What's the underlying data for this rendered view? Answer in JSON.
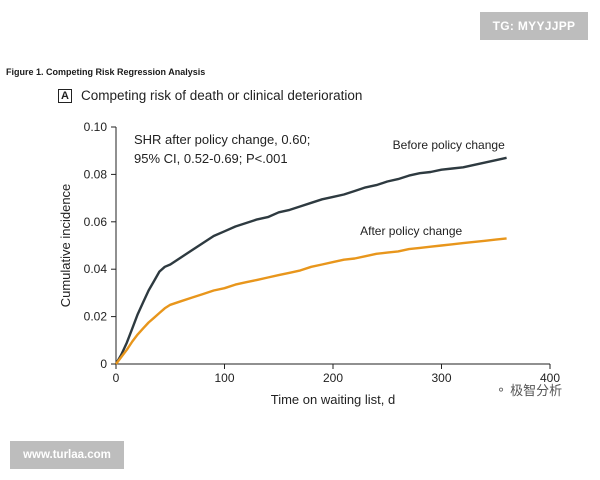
{
  "badges": {
    "top_right": "TG: MYYJJPP",
    "bottom_left": "www.turlaa.com",
    "watermark_text": "极智分析",
    "watermark_icon": "wechat-icon"
  },
  "figure": {
    "caption": "Figure 1.  Competing Risk Regression Analysis",
    "panel_letter": "A",
    "panel_title": "Competing risk of death or clinical deterioration"
  },
  "chart_data": {
    "type": "line",
    "title": "Competing risk of death or clinical deterioration",
    "xlabel": "Time on waiting list, d",
    "ylabel": "Cumulative incidence",
    "xlim": [
      0,
      400
    ],
    "ylim": [
      0,
      0.1
    ],
    "xticks": [
      0,
      100,
      200,
      300,
      400
    ],
    "yticks": [
      0,
      0.02,
      0.04,
      0.06,
      0.08,
      0.1
    ],
    "xtick_labels": [
      "0",
      "100",
      "200",
      "300",
      "400"
    ],
    "ytick_labels": [
      "0",
      "0.02",
      "0.04",
      "0.06",
      "0.08",
      "0.10"
    ],
    "grid": false,
    "annotation_lines": [
      "SHR after policy change, 0.60;",
      "95% CI, 0.52-0.69; P<.001"
    ],
    "series": [
      {
        "name": "Before policy change",
        "color": "#2e3a40",
        "x": [
          0,
          5,
          10,
          15,
          20,
          25,
          30,
          35,
          40,
          45,
          50,
          60,
          70,
          80,
          90,
          100,
          110,
          120,
          130,
          140,
          150,
          160,
          170,
          180,
          190,
          200,
          210,
          220,
          230,
          240,
          250,
          260,
          270,
          280,
          290,
          300,
          310,
          320,
          330,
          340,
          350,
          360
        ],
        "values": [
          0,
          0.004,
          0.009,
          0.015,
          0.021,
          0.026,
          0.031,
          0.035,
          0.039,
          0.041,
          0.042,
          0.045,
          0.048,
          0.051,
          0.054,
          0.056,
          0.058,
          0.0595,
          0.061,
          0.062,
          0.064,
          0.065,
          0.0665,
          0.068,
          0.0695,
          0.0705,
          0.0715,
          0.073,
          0.0745,
          0.0755,
          0.077,
          0.078,
          0.0795,
          0.0805,
          0.081,
          0.082,
          0.0825,
          0.083,
          0.084,
          0.085,
          0.086,
          0.087
        ]
      },
      {
        "name": "After policy change",
        "color": "#e8961c",
        "x": [
          0,
          5,
          10,
          15,
          20,
          25,
          30,
          35,
          40,
          45,
          50,
          60,
          70,
          80,
          90,
          100,
          110,
          120,
          130,
          140,
          150,
          160,
          170,
          180,
          190,
          200,
          210,
          220,
          230,
          240,
          250,
          260,
          270,
          280,
          290,
          300,
          310,
          320,
          330,
          340,
          350,
          360
        ],
        "values": [
          0,
          0.003,
          0.006,
          0.0095,
          0.0125,
          0.015,
          0.0175,
          0.0195,
          0.0215,
          0.0235,
          0.025,
          0.0265,
          0.028,
          0.0295,
          0.031,
          0.032,
          0.0335,
          0.0345,
          0.0355,
          0.0365,
          0.0375,
          0.0385,
          0.0395,
          0.041,
          0.042,
          0.043,
          0.044,
          0.0445,
          0.0455,
          0.0465,
          0.047,
          0.0475,
          0.0485,
          0.049,
          0.0495,
          0.05,
          0.0505,
          0.051,
          0.0515,
          0.052,
          0.0525,
          0.053
        ]
      }
    ]
  }
}
